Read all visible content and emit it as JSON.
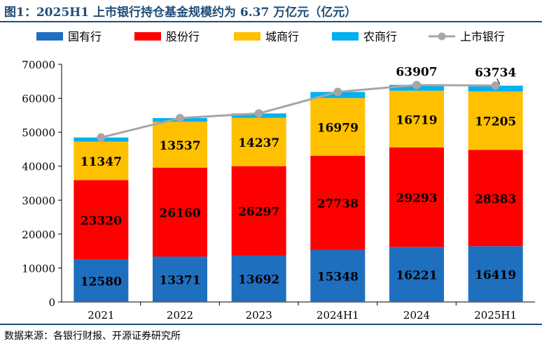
{
  "title": "图1：2025H1 上市银行持仓基金规模约为 6.37 万亿元（亿元）",
  "source": "数据来源：各银行财报、开源证券研究所",
  "chart_data": {
    "type": "bar",
    "stacked": true,
    "categories": [
      "2021",
      "2022",
      "2023",
      "2024H1",
      "2024",
      "2025H1"
    ],
    "series": [
      {
        "name": "国有行",
        "color": "#1f6fbf",
        "values": [
          12580,
          13371,
          13692,
          15348,
          16221,
          16419
        ],
        "labels_shown": true
      },
      {
        "name": "股份行",
        "color": "#ff0000",
        "values": [
          23320,
          26160,
          26297,
          27738,
          29293,
          28383
        ],
        "labels_shown": true
      },
      {
        "name": "城商行",
        "color": "#ffc000",
        "values": [
          11347,
          13537,
          14237,
          16979,
          16719,
          17205
        ],
        "labels_shown": true
      },
      {
        "name": "农商行",
        "color": "#00b0f0",
        "values": [
          1200,
          1100,
          1300,
          1800,
          1700,
          1700
        ],
        "labels_shown": false
      }
    ],
    "line": {
      "name": "上市银行",
      "color": "#a6a6a6",
      "values": [
        48447,
        54168,
        55526,
        61865,
        63907,
        63734
      ],
      "labels": [
        "",
        "",
        "",
        "",
        "63907",
        "63734"
      ]
    },
    "ylim": [
      0,
      70000
    ],
    "yticks": [
      "0",
      "10000",
      "20000",
      "30000",
      "40000",
      "50000",
      "60000",
      "70000"
    ],
    "legend": "top",
    "grid": false
  }
}
